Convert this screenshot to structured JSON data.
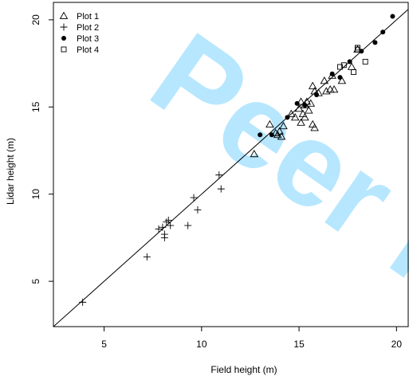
{
  "chart_data": {
    "type": "scatter",
    "xlabel": "Field height (m)",
    "ylabel": "Lidar height (m)",
    "xlim": [
      2.4,
      20.6
    ],
    "ylim": [
      2.4,
      21.0
    ],
    "x_ticks": [
      5,
      10,
      15,
      20
    ],
    "y_ticks": [
      5,
      10,
      15,
      20
    ],
    "x_tick_labels": [
      "5",
      "10",
      "15",
      "20"
    ],
    "y_tick_labels": [
      "5",
      "10",
      "15",
      "20"
    ],
    "grid": false,
    "legend_position": "top-left",
    "reference_line": {
      "slope": 1,
      "intercept": 0
    },
    "watermark": "Peer Re",
    "series": [
      {
        "name": "Plot 1",
        "marker": "triangle-open",
        "points": [
          [
            12.7,
            12.3
          ],
          [
            13.5,
            14.0
          ],
          [
            13.8,
            13.5
          ],
          [
            13.9,
            13.4
          ],
          [
            14.0,
            13.6
          ],
          [
            14.1,
            13.3
          ],
          [
            14.2,
            13.9
          ],
          [
            14.6,
            14.6
          ],
          [
            14.8,
            14.4
          ],
          [
            15.0,
            14.9
          ],
          [
            15.1,
            14.1
          ],
          [
            15.1,
            15.3
          ],
          [
            15.2,
            14.6
          ],
          [
            15.3,
            14.4
          ],
          [
            15.3,
            15.1
          ],
          [
            15.4,
            15.3
          ],
          [
            15.5,
            14.8
          ],
          [
            15.6,
            15.2
          ],
          [
            15.7,
            16.2
          ],
          [
            15.7,
            14.0
          ],
          [
            15.8,
            13.8
          ],
          [
            15.8,
            15.9
          ],
          [
            16.0,
            15.8
          ],
          [
            16.3,
            16.5
          ],
          [
            16.4,
            15.9
          ],
          [
            16.6,
            16.0
          ],
          [
            16.7,
            16.8
          ],
          [
            16.8,
            16.0
          ],
          [
            17.2,
            16.5
          ],
          [
            17.7,
            17.3
          ],
          [
            18.0,
            18.3
          ]
        ]
      },
      {
        "name": "Plot 2",
        "marker": "plus",
        "points": [
          [
            3.9,
            3.8
          ],
          [
            7.2,
            6.4
          ],
          [
            7.8,
            8.0
          ],
          [
            8.0,
            8.1
          ],
          [
            8.1,
            7.7
          ],
          [
            8.1,
            7.5
          ],
          [
            8.2,
            8.4
          ],
          [
            8.3,
            8.5
          ],
          [
            8.4,
            8.2
          ],
          [
            9.3,
            8.2
          ],
          [
            9.6,
            9.8
          ],
          [
            9.8,
            9.1
          ],
          [
            10.9,
            11.1
          ],
          [
            11.0,
            10.3
          ]
        ]
      },
      {
        "name": "Plot 3",
        "marker": "circle-filled",
        "points": [
          [
            13.0,
            13.4
          ],
          [
            13.6,
            13.4
          ],
          [
            14.4,
            14.4
          ],
          [
            14.9,
            15.2
          ],
          [
            15.3,
            15.1
          ],
          [
            15.9,
            15.7
          ],
          [
            16.7,
            16.9
          ],
          [
            17.1,
            16.7
          ],
          [
            17.6,
            17.6
          ],
          [
            18.2,
            18.2
          ],
          [
            18.9,
            18.7
          ],
          [
            19.3,
            19.3
          ],
          [
            19.8,
            20.2
          ]
        ]
      },
      {
        "name": "Plot 4",
        "marker": "square-open",
        "points": [
          [
            17.1,
            17.3
          ],
          [
            17.3,
            17.4
          ],
          [
            17.8,
            17.0
          ],
          [
            18.0,
            18.3
          ],
          [
            18.0,
            18.4
          ],
          [
            18.4,
            17.6
          ]
        ]
      }
    ]
  }
}
